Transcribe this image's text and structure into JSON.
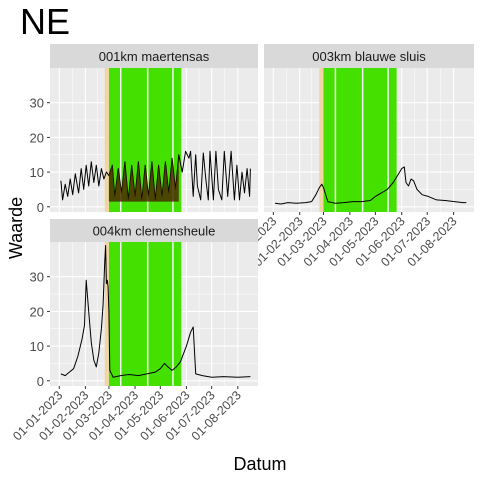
{
  "figure": {
    "title": "NE",
    "xlabel": "Datum",
    "ylabel": "Waarde"
  },
  "colors": {
    "panel_bg": "#ebebeb",
    "grid": "#ffffff",
    "strip_bg": "#d9d9d9",
    "text": "#1a1a1a",
    "tick_text": "#4d4d4d",
    "line": "#000000",
    "green_band": "#44e000",
    "tan_band": "#f2d5a4",
    "dark_overlay": "#4a2a00"
  },
  "chart_data": {
    "type": "line",
    "x_tick_labels": [
      "01-01-2023",
      "01-02-2023",
      "01-03-2023",
      "01-04-2023",
      "01-05-2023",
      "01-06-2023",
      "01-07-2023",
      "01-08-2023"
    ],
    "y_ticks": [
      0,
      10,
      20,
      30
    ],
    "ylim": [
      -1.5,
      40
    ],
    "xlim": [
      "2022-12-21",
      "2023-08-25"
    ],
    "grid": true,
    "bands": [
      {
        "type": "tan",
        "start": "2023-02-24",
        "end": "2023-03-01"
      },
      {
        "type": "green",
        "start": "2023-03-01",
        "end": "2023-05-26"
      }
    ],
    "band_gaps": [
      "2023-03-15",
      "2023-04-16",
      "2023-05-16"
    ],
    "panels": [
      {
        "title": "001km maertensas",
        "show_x_axis": false,
        "show_y_axis": true,
        "points": [
          [
            "2023-01-03",
            7.5
          ],
          [
            "2023-01-05",
            2.0
          ],
          [
            "2023-01-08",
            6.5
          ],
          [
            "2023-01-11",
            3.0
          ],
          [
            "2023-01-14",
            8.0
          ],
          [
            "2023-01-17",
            3.5
          ],
          [
            "2023-01-20",
            9.5
          ],
          [
            "2023-01-24",
            4.0
          ],
          [
            "2023-01-27",
            11.0
          ],
          [
            "2023-01-30",
            5.0
          ],
          [
            "2023-02-02",
            12.0
          ],
          [
            "2023-02-05",
            6.0
          ],
          [
            "2023-02-08",
            13.0
          ],
          [
            "2023-02-11",
            7.0
          ],
          [
            "2023-02-14",
            12.0
          ],
          [
            "2023-02-17",
            6.0
          ],
          [
            "2023-02-20",
            11.0
          ],
          [
            "2023-02-23",
            8.0
          ],
          [
            "2023-02-26",
            10.0
          ],
          [
            "2023-03-01",
            9.0
          ],
          [
            "2023-03-05",
            12.0
          ],
          [
            "2023-03-08",
            3.0
          ],
          [
            "2023-03-12",
            11.0
          ],
          [
            "2023-03-16",
            4.0
          ],
          [
            "2023-03-20",
            13.0
          ],
          [
            "2023-03-24",
            2.0
          ],
          [
            "2023-03-28",
            12.0
          ],
          [
            "2023-04-01",
            3.0
          ],
          [
            "2023-04-05",
            13.0
          ],
          [
            "2023-04-09",
            2.0
          ],
          [
            "2023-04-13",
            12.0
          ],
          [
            "2023-04-17",
            3.0
          ],
          [
            "2023-04-21",
            13.0
          ],
          [
            "2023-04-25",
            2.0
          ],
          [
            "2023-04-29",
            12.0
          ],
          [
            "2023-05-03",
            3.0
          ],
          [
            "2023-05-07",
            13.0
          ],
          [
            "2023-05-11",
            4.0
          ],
          [
            "2023-05-15",
            14.0
          ],
          [
            "2023-05-19",
            5.0
          ],
          [
            "2023-05-23",
            15.0
          ],
          [
            "2023-05-27",
            10.0
          ],
          [
            "2023-05-31",
            16.0
          ],
          [
            "2023-06-04",
            14.0
          ],
          [
            "2023-06-06",
            16.0
          ],
          [
            "2023-06-09",
            3.0
          ],
          [
            "2023-06-12",
            15.0
          ],
          [
            "2023-06-14",
            6.0
          ],
          [
            "2023-06-18",
            2.0
          ],
          [
            "2023-06-21",
            15.5
          ],
          [
            "2023-06-24",
            8.0
          ],
          [
            "2023-06-27",
            2.0
          ],
          [
            "2023-06-29",
            16.0
          ],
          [
            "2023-07-03",
            2.0
          ],
          [
            "2023-07-06",
            16.0
          ],
          [
            "2023-07-09",
            5.0
          ],
          [
            "2023-07-13",
            2.0
          ],
          [
            "2023-07-16",
            16.0
          ],
          [
            "2023-07-20",
            3.0
          ],
          [
            "2023-07-24",
            16.0
          ],
          [
            "2023-07-28",
            2.0
          ],
          [
            "2023-07-31",
            12.0
          ],
          [
            "2023-08-03",
            2.0
          ],
          [
            "2023-08-06",
            10.0
          ],
          [
            "2023-08-09",
            4.0
          ],
          [
            "2023-08-12",
            11.0
          ],
          [
            "2023-08-15",
            3.0
          ],
          [
            "2023-08-16",
            11.0
          ]
        ]
      },
      {
        "title": "003km blauwe sluis",
        "show_x_axis": true,
        "show_y_axis": false,
        "points": [
          [
            "2023-01-03",
            1.0
          ],
          [
            "2023-01-10",
            0.8
          ],
          [
            "2023-01-18",
            1.2
          ],
          [
            "2023-01-28",
            1.0
          ],
          [
            "2023-02-08",
            1.2
          ],
          [
            "2023-02-15",
            1.5
          ],
          [
            "2023-02-20",
            3.5
          ],
          [
            "2023-02-24",
            5.5
          ],
          [
            "2023-02-27",
            6.5
          ],
          [
            "2023-03-01",
            5.5
          ],
          [
            "2023-03-06",
            1.5
          ],
          [
            "2023-03-15",
            1.0
          ],
          [
            "2023-03-25",
            1.2
          ],
          [
            "2023-04-05",
            1.5
          ],
          [
            "2023-04-15",
            1.5
          ],
          [
            "2023-04-25",
            1.8
          ],
          [
            "2023-05-01",
            3.0
          ],
          [
            "2023-05-08",
            4.0
          ],
          [
            "2023-05-15",
            5.0
          ],
          [
            "2023-05-22",
            7.0
          ],
          [
            "2023-05-27",
            9.0
          ],
          [
            "2023-06-01",
            11.0
          ],
          [
            "2023-06-04",
            11.5
          ],
          [
            "2023-06-06",
            7.0
          ],
          [
            "2023-06-09",
            6.0
          ],
          [
            "2023-06-12",
            8.0
          ],
          [
            "2023-06-15",
            7.5
          ],
          [
            "2023-06-19",
            5.0
          ],
          [
            "2023-06-25",
            3.5
          ],
          [
            "2023-07-02",
            3.0
          ],
          [
            "2023-07-12",
            2.0
          ],
          [
            "2023-07-22",
            1.8
          ],
          [
            "2023-08-02",
            1.5
          ],
          [
            "2023-08-12",
            1.2
          ],
          [
            "2023-08-16",
            1.2
          ]
        ]
      },
      {
        "title": "004km clemensheule",
        "show_x_axis": true,
        "show_y_axis": true,
        "points": [
          [
            "2023-01-03",
            2.0
          ],
          [
            "2023-01-08",
            1.5
          ],
          [
            "2023-01-13",
            2.5
          ],
          [
            "2023-01-18",
            3.5
          ],
          [
            "2023-01-23",
            7.0
          ],
          [
            "2023-01-28",
            12.0
          ],
          [
            "2023-01-31",
            16.0
          ],
          [
            "2023-02-02",
            29.0
          ],
          [
            "2023-02-05",
            20.0
          ],
          [
            "2023-02-08",
            11.0
          ],
          [
            "2023-02-11",
            6.0
          ],
          [
            "2023-02-14",
            4.0
          ],
          [
            "2023-02-17",
            8.0
          ],
          [
            "2023-02-20",
            15.0
          ],
          [
            "2023-02-22",
            22.0
          ],
          [
            "2023-02-24",
            34.0
          ],
          [
            "2023-02-25",
            39.0
          ],
          [
            "2023-02-26",
            28.0
          ],
          [
            "2023-02-27",
            29.0
          ],
          [
            "2023-02-28",
            27.0
          ],
          [
            "2023-03-01",
            20.0
          ],
          [
            "2023-03-02",
            3.0
          ],
          [
            "2023-03-06",
            1.0
          ],
          [
            "2023-03-15",
            1.5
          ],
          [
            "2023-03-25",
            1.8
          ],
          [
            "2023-04-05",
            1.5
          ],
          [
            "2023-04-15",
            2.0
          ],
          [
            "2023-04-25",
            2.5
          ],
          [
            "2023-05-01",
            3.5
          ],
          [
            "2023-05-06",
            5.0
          ],
          [
            "2023-05-10",
            4.0
          ],
          [
            "2023-05-15",
            3.0
          ],
          [
            "2023-05-20",
            4.0
          ],
          [
            "2023-05-25",
            5.5
          ],
          [
            "2023-06-01",
            10.0
          ],
          [
            "2023-06-06",
            14.0
          ],
          [
            "2023-06-09",
            15.5
          ],
          [
            "2023-06-12",
            2.0
          ],
          [
            "2023-06-20",
            1.5
          ],
          [
            "2023-07-01",
            1.0
          ],
          [
            "2023-07-15",
            1.2
          ],
          [
            "2023-08-01",
            1.0
          ],
          [
            "2023-08-16",
            1.2
          ]
        ]
      }
    ]
  }
}
